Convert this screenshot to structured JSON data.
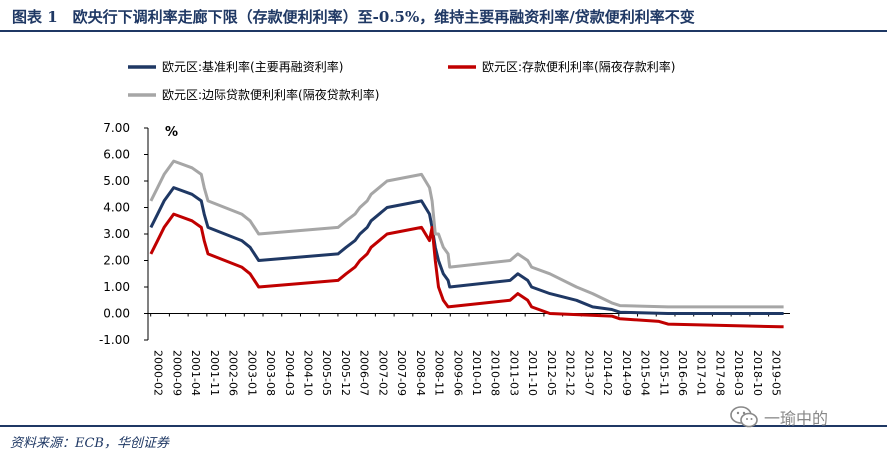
{
  "figure": {
    "title": "图表 1　欧央行下调利率走廊下限（存款便利利率）至-0.5%，维持主要再融资利率/贷款便利利率不变",
    "source": "资料来源：ECB，华创证券",
    "watermark": "一瑜中的"
  },
  "chart_data": {
    "type": "line",
    "unit": "%",
    "ylim": [
      -1.0,
      7.0
    ],
    "yticks": [
      "7.00",
      "6.00",
      "5.00",
      "4.00",
      "3.00",
      "2.00",
      "1.00",
      "0.00",
      "-1.00"
    ],
    "x_range": [
      2000.0,
      2020.0
    ],
    "x_tick_labels": [
      "2000-02",
      "2000-09",
      "2001-04",
      "2001-11",
      "2002-06",
      "2003-01",
      "2003-08",
      "2004-03",
      "2004-10",
      "2005-05",
      "2005-12",
      "2006-07",
      "2007-02",
      "2007-09",
      "2008-04",
      "2008-11",
      "2009-06",
      "2010-01",
      "2010-08",
      "2011-03",
      "2011-10",
      "2012-05",
      "2012-12",
      "2013-07",
      "2014-02",
      "2014-09",
      "2015-04",
      "2015-11",
      "2016-06",
      "2017-01",
      "2017-08",
      "2018-03",
      "2018-10",
      "2019-05"
    ],
    "legend_position": "top",
    "grid": false,
    "series": [
      {
        "name": "欧元区:基准利率(主要再融资利率)",
        "color": "#1f3864",
        "points": [
          [
            2000.09,
            3.25
          ],
          [
            2000.3,
            3.75
          ],
          [
            2000.5,
            4.25
          ],
          [
            2000.8,
            4.75
          ],
          [
            2001.37,
            4.5
          ],
          [
            2001.66,
            4.25
          ],
          [
            2001.75,
            3.75
          ],
          [
            2001.87,
            3.25
          ],
          [
            2002.92,
            2.75
          ],
          [
            2003.18,
            2.5
          ],
          [
            2003.45,
            2.0
          ],
          [
            2005.92,
            2.25
          ],
          [
            2006.17,
            2.5
          ],
          [
            2006.45,
            2.75
          ],
          [
            2006.6,
            3.0
          ],
          [
            2006.83,
            3.25
          ],
          [
            2006.95,
            3.5
          ],
          [
            2007.45,
            4.0
          ],
          [
            2008.52,
            4.25
          ],
          [
            2008.77,
            3.75
          ],
          [
            2008.85,
            3.25
          ],
          [
            2008.95,
            2.5
          ],
          [
            2009.05,
            2.0
          ],
          [
            2009.2,
            1.5
          ],
          [
            2009.35,
            1.25
          ],
          [
            2009.4,
            1.0
          ],
          [
            2011.28,
            1.25
          ],
          [
            2011.52,
            1.5
          ],
          [
            2011.83,
            1.25
          ],
          [
            2011.95,
            1.0
          ],
          [
            2012.52,
            0.75
          ],
          [
            2013.35,
            0.5
          ],
          [
            2013.85,
            0.25
          ],
          [
            2014.45,
            0.15
          ],
          [
            2014.7,
            0.05
          ],
          [
            2016.2,
            0.0
          ],
          [
            2019.8,
            0.0
          ]
        ]
      },
      {
        "name": "欧元区:存款便利利率(隔夜存款利率)",
        "color": "#c00000",
        "points": [
          [
            2000.09,
            2.25
          ],
          [
            2000.3,
            2.75
          ],
          [
            2000.5,
            3.25
          ],
          [
            2000.8,
            3.75
          ],
          [
            2001.37,
            3.5
          ],
          [
            2001.66,
            3.25
          ],
          [
            2001.75,
            2.75
          ],
          [
            2001.87,
            2.25
          ],
          [
            2002.92,
            1.75
          ],
          [
            2003.18,
            1.5
          ],
          [
            2003.45,
            1.0
          ],
          [
            2005.92,
            1.25
          ],
          [
            2006.17,
            1.5
          ],
          [
            2006.45,
            1.75
          ],
          [
            2006.6,
            2.0
          ],
          [
            2006.83,
            2.25
          ],
          [
            2006.95,
            2.5
          ],
          [
            2007.45,
            3.0
          ],
          [
            2008.52,
            3.25
          ],
          [
            2008.77,
            2.75
          ],
          [
            2008.85,
            3.25
          ],
          [
            2008.95,
            2.0
          ],
          [
            2009.05,
            1.0
          ],
          [
            2009.2,
            0.5
          ],
          [
            2009.35,
            0.25
          ],
          [
            2011.28,
            0.5
          ],
          [
            2011.52,
            0.75
          ],
          [
            2011.83,
            0.5
          ],
          [
            2011.95,
            0.25
          ],
          [
            2012.52,
            0.0
          ],
          [
            2014.45,
            -0.1
          ],
          [
            2014.7,
            -0.2
          ],
          [
            2015.92,
            -0.3
          ],
          [
            2016.2,
            -0.4
          ],
          [
            2019.7,
            -0.5
          ],
          [
            2019.8,
            -0.5
          ]
        ]
      },
      {
        "name": "欧元区:边际贷款便利利率(隔夜贷款利率)",
        "color": "#a6a6a6",
        "points": [
          [
            2000.09,
            4.25
          ],
          [
            2000.3,
            4.75
          ],
          [
            2000.5,
            5.25
          ],
          [
            2000.8,
            5.75
          ],
          [
            2001.37,
            5.5
          ],
          [
            2001.66,
            5.25
          ],
          [
            2001.75,
            4.75
          ],
          [
            2001.87,
            4.25
          ],
          [
            2002.92,
            3.75
          ],
          [
            2003.18,
            3.5
          ],
          [
            2003.45,
            3.0
          ],
          [
            2005.92,
            3.25
          ],
          [
            2006.17,
            3.5
          ],
          [
            2006.45,
            3.75
          ],
          [
            2006.6,
            4.0
          ],
          [
            2006.83,
            4.25
          ],
          [
            2006.95,
            4.5
          ],
          [
            2007.45,
            5.0
          ],
          [
            2008.52,
            5.25
          ],
          [
            2008.77,
            4.75
          ],
          [
            2008.85,
            4.25
          ],
          [
            2008.95,
            3.0
          ],
          [
            2009.05,
            3.0
          ],
          [
            2009.2,
            2.5
          ],
          [
            2009.35,
            2.25
          ],
          [
            2009.4,
            1.75
          ],
          [
            2011.28,
            2.0
          ],
          [
            2011.52,
            2.25
          ],
          [
            2011.83,
            2.0
          ],
          [
            2011.95,
            1.75
          ],
          [
            2012.52,
            1.5
          ],
          [
            2013.35,
            1.0
          ],
          [
            2013.85,
            0.75
          ],
          [
            2014.45,
            0.4
          ],
          [
            2014.7,
            0.3
          ],
          [
            2016.2,
            0.25
          ],
          [
            2019.8,
            0.25
          ]
        ]
      }
    ]
  }
}
